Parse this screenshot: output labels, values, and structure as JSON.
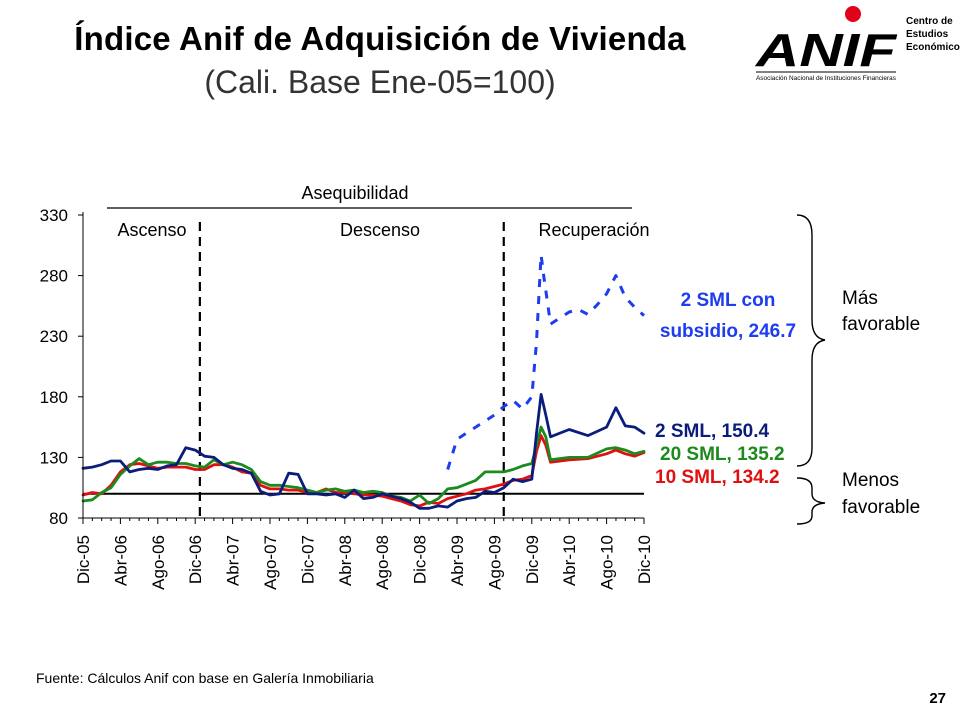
{
  "header": {
    "title": "Índice Anif de Adquisición de Vivienda",
    "subtitle": "(Cali. Base Ene-05=100)"
  },
  "logo": {
    "wordmark": "ANIF",
    "tagline": "Asociación Nacional de Instituciones Financieras",
    "side_text": [
      "Centro de",
      "Estudios",
      "Económicos"
    ],
    "accent_color": "#e3001b"
  },
  "chart_data": {
    "type": "line",
    "title": "",
    "xlabel": "",
    "ylabel": "",
    "ylim": [
      80,
      330
    ],
    "yticks": [
      80,
      130,
      180,
      230,
      280,
      330
    ],
    "x_labels": [
      "Dic-05",
      "Abr-06",
      "Ago-06",
      "Dic-06",
      "Abr-07",
      "Ago-07",
      "Dic-07",
      "Abr-08",
      "Ago-08",
      "Dic-08",
      "Abr-09",
      "Ago-09",
      "Dic-09",
      "Abr-10",
      "Ago-10",
      "Dic-10"
    ],
    "x_range": [
      0,
      60
    ],
    "reference_line": 100,
    "periods": {
      "top_label": "Asequibilidad",
      "labels": [
        "Ascenso",
        "Descenso",
        "Recuperación"
      ],
      "dividers": [
        12.5,
        45
      ]
    },
    "series": [
      {
        "key": "s2",
        "name": "2 SML",
        "color": "#0b1d7a",
        "style": "solid",
        "x": [
          0,
          1,
          2,
          3,
          4,
          5,
          6,
          7,
          8,
          9,
          10,
          11,
          12,
          13,
          14,
          15,
          16,
          17,
          18,
          19,
          20,
          21,
          22,
          23,
          24,
          25,
          26,
          27,
          28,
          29,
          30,
          31,
          32,
          33,
          34,
          35,
          36,
          37,
          38,
          39,
          40,
          41,
          42,
          43,
          44,
          45,
          46,
          47,
          48,
          48.5,
          49,
          49.5,
          50,
          52,
          54,
          56,
          57,
          58,
          59,
          60
        ],
        "y": [
          121,
          122,
          124,
          127,
          127,
          118,
          120,
          121,
          120,
          123,
          124,
          138,
          136,
          131,
          130,
          124,
          121,
          120,
          117,
          102,
          99,
          100,
          117,
          116,
          100,
          100,
          99,
          100,
          97,
          103,
          96,
          97,
          100,
          98,
          96,
          93,
          88,
          88,
          90,
          89,
          94,
          96,
          97,
          102,
          101,
          105,
          112,
          110,
          112,
          150,
          182,
          165,
          147,
          153,
          148,
          155,
          171,
          156,
          155,
          150
        ]
      },
      {
        "key": "s20",
        "name": "20 SML",
        "color": "#1c8a1c",
        "style": "solid",
        "x": [
          0,
          1,
          2,
          3,
          4,
          5,
          6,
          7,
          8,
          9,
          10,
          11,
          12,
          13,
          14,
          15,
          16,
          17,
          18,
          19,
          20,
          21,
          22,
          23,
          24,
          25,
          26,
          27,
          28,
          29,
          30,
          31,
          32,
          33,
          34,
          35,
          36,
          37,
          38,
          39,
          40,
          41,
          42,
          43,
          44,
          45,
          46,
          47,
          48,
          48.5,
          49,
          49.5,
          50,
          52,
          54,
          56,
          57,
          58,
          59,
          60
        ],
        "y": [
          94,
          95,
          101,
          105,
          116,
          123,
          129,
          124,
          126,
          126,
          125,
          125,
          123,
          122,
          128,
          124,
          126,
          124,
          120,
          110,
          107,
          107,
          106,
          105,
          103,
          101,
          103,
          104,
          102,
          103,
          101,
          102,
          101,
          98,
          97,
          94,
          99,
          92,
          96,
          104,
          105,
          108,
          111,
          118,
          118,
          118,
          120,
          123,
          125,
          140,
          155,
          147,
          128,
          130,
          130,
          137,
          138,
          136,
          133,
          135
        ]
      },
      {
        "key": "s10",
        "name": "10 SML",
        "color": "#e01010",
        "style": "solid",
        "x": [
          0,
          1,
          2,
          3,
          4,
          5,
          6,
          7,
          8,
          9,
          10,
          11,
          12,
          13,
          14,
          15,
          16,
          17,
          18,
          19,
          20,
          21,
          22,
          23,
          24,
          25,
          26,
          27,
          28,
          29,
          30,
          31,
          32,
          33,
          34,
          35,
          36,
          37,
          38,
          39,
          40,
          41,
          42,
          43,
          44,
          45,
          46,
          47,
          48,
          48.5,
          49,
          49.5,
          50,
          52,
          54,
          56,
          57,
          58,
          59,
          60
        ],
        "y": [
          99,
          101,
          100,
          107,
          118,
          124,
          125,
          123,
          121,
          122,
          122,
          122,
          120,
          120,
          124,
          124,
          122,
          118,
          117,
          107,
          104,
          104,
          103,
          103,
          101,
          101,
          104,
          101,
          101,
          100,
          99,
          99,
          98,
          96,
          94,
          91,
          90,
          93,
          92,
          96,
          98,
          100,
          103,
          104,
          106,
          108,
          111,
          112,
          115,
          135,
          148,
          140,
          126,
          128,
          129,
          133,
          136,
          133,
          131,
          134
        ]
      },
      {
        "key": "ssub",
        "name": "2 SML con subsidio",
        "color": "#1e3cf0",
        "style": "dashed",
        "x": [
          39,
          40,
          42,
          44,
          45,
          46,
          47,
          47.5,
          48,
          48.5,
          48.8,
          49,
          49.3,
          49.6,
          50,
          51,
          52,
          53,
          54,
          55,
          56,
          57,
          58,
          59,
          60
        ],
        "y": [
          120,
          145,
          155,
          165,
          172,
          177,
          170,
          175,
          180,
          225,
          270,
          297,
          278,
          262,
          240,
          245,
          250,
          252,
          248,
          256,
          265,
          280,
          262,
          254,
          247
        ]
      }
    ],
    "annotations": [
      {
        "text": "2 SML con",
        "color": "#1e3cf0"
      },
      {
        "text": "subsidio, 246.7",
        "color": "#1e3cf0"
      },
      {
        "text": "2 SML, 150.4",
        "color": "#0b1d7a"
      },
      {
        "text": "20 SML, 135.2",
        "color": "#1c8a1c"
      },
      {
        "text": "10 SML, 134.2",
        "color": "#e01010"
      }
    ],
    "side_labels": [
      {
        "lines": [
          "Más",
          "favorable"
        ]
      },
      {
        "lines": [
          "Menos",
          "favorable"
        ]
      }
    ]
  },
  "footer": {
    "source": "Fuente: Cálculos Anif con base en Galería Inmobiliaria",
    "page_number": "27"
  }
}
